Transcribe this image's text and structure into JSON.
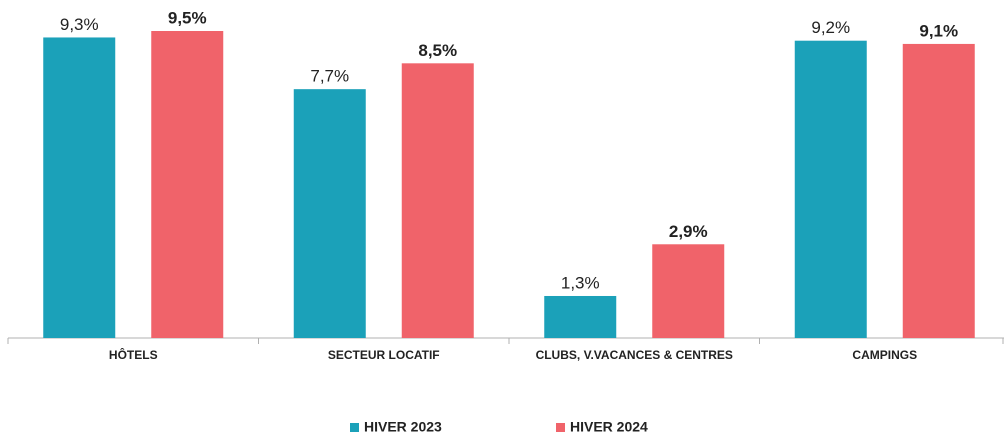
{
  "chart_data": {
    "type": "bar",
    "categories": [
      "HÔTELS",
      "SECTEUR LOCATIF",
      "CLUBS, V.VACANCES & CENTRES",
      "CAMPINGS"
    ],
    "series": [
      {
        "name": "HIVER 2023",
        "color": "#1ba1b9",
        "values": [
          9.3,
          7.7,
          1.3,
          9.2
        ],
        "value_labels": [
          "9,3%",
          "7,7%",
          "1,3%",
          "9,2%"
        ]
      },
      {
        "name": "HIVER 2024",
        "color": "#f0636a",
        "values": [
          9.5,
          8.5,
          2.9,
          9.1
        ],
        "value_labels": [
          "9,5%",
          "8,5%",
          "2,9%",
          "9,1%"
        ]
      }
    ],
    "legend": "bottom"
  }
}
